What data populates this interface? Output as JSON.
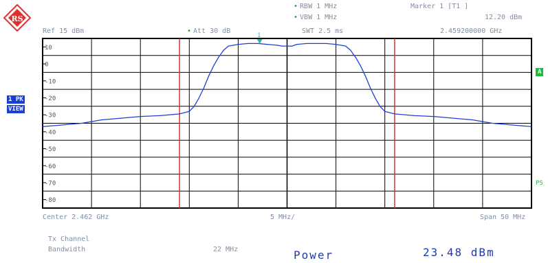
{
  "header": {
    "rbw": "RBW 1 MHz",
    "vbw": "VBW 1 MHz",
    "swt": "SWT 2.5 ms",
    "ref": "Ref 15 dBm",
    "att": "Att 30 dB",
    "marker_label": "Marker 1 [T1 ]",
    "marker_level": "12.20 dBm",
    "marker_freq": "2.459200000 GHz",
    "marker_number": "1"
  },
  "side": {
    "trace_tag_top": "1 PK",
    "trace_tag_bottom": "VIEW",
    "a_tag": "A",
    "ps_tag": "PS"
  },
  "footer": {
    "center": "Center 2.462 GHz",
    "per_div": "5 MHz/",
    "span": "Span 50 MHz",
    "tx_channel": "Tx Channel",
    "bandwidth_label": "Bandwidth",
    "bandwidth_value": "22 MHz",
    "power_label": "Power",
    "power_value": "23.48 dBm"
  },
  "colors": {
    "trace": "#1a3fd6",
    "grid": "#000000",
    "channel_lines": "#e03030",
    "marker": "#1fb8c0",
    "text": "#7f8fa8"
  },
  "chart_data": {
    "type": "line",
    "title": "",
    "xlabel": "",
    "ylabel": "",
    "x_unit": "MHz offset from center (2.462 GHz)",
    "xlim": [
      -25,
      25
    ],
    "ylim": [
      -85,
      15
    ],
    "y_tick_labels": [
      "10",
      "0",
      "-10",
      "-20",
      "-30",
      "-40",
      "-50",
      "-60",
      "-70",
      "-80"
    ],
    "y_tick_values": [
      10,
      0,
      -10,
      -20,
      -30,
      -40,
      -50,
      -60,
      -70,
      -80
    ],
    "grid": true,
    "series": [
      {
        "x": [
          -25,
          -23,
          -21,
          -19,
          -17,
          -15,
          -13,
          -11,
          -10,
          -9.5,
          -9,
          -8.5,
          -8,
          -7.5,
          -7,
          -6.5,
          -6,
          -5,
          -4,
          -3,
          -2,
          -1,
          -0.5,
          0,
          0.5,
          1,
          2,
          3,
          4,
          5,
          6,
          6.5,
          7,
          7.5,
          8,
          8.5,
          9,
          9.5,
          10,
          11,
          13,
          15,
          17,
          19,
          21,
          23,
          25
        ],
        "y": [
          -37,
          -36,
          -35,
          -33,
          -32,
          -31,
          -30.5,
          -29.5,
          -28,
          -25,
          -20,
          -14,
          -7,
          -1,
          4,
          8,
          10.5,
          11.5,
          12,
          12,
          11.5,
          11,
          10.5,
          10.5,
          10.5,
          11.5,
          12,
          12,
          12,
          11.5,
          10.5,
          8,
          4,
          -1,
          -7,
          -14,
          -20,
          -25,
          -28,
          -29.5,
          -30.5,
          -31,
          -32,
          -33,
          -35,
          -36,
          -37
        ]
      }
    ],
    "vertical_lines_x": [
      -11,
      11
    ],
    "marker": {
      "x": -2.8,
      "y": 12.2
    }
  }
}
